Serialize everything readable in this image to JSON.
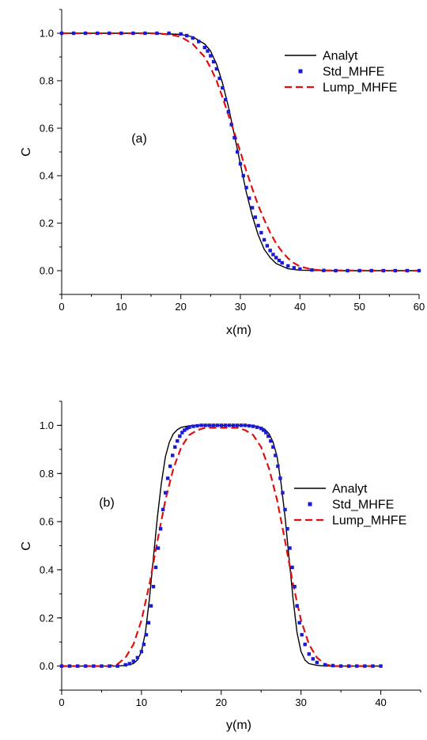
{
  "chart_data": [
    {
      "type": "line",
      "panel_label": "(a)",
      "xlabel": "x(m)",
      "ylabel": "C",
      "xlim": [
        0,
        60
      ],
      "ylim": [
        -0.1,
        1.1
      ],
      "xticks": [
        0,
        10,
        20,
        30,
        40,
        50,
        60
      ],
      "yticks": [
        0.0,
        0.2,
        0.4,
        0.6,
        0.8,
        1.0
      ],
      "xtick_labels": [
        "0",
        "10",
        "20",
        "30",
        "40",
        "50",
        "60"
      ],
      "ytick_labels": [
        "0.0",
        "0.2",
        "0.4",
        "0.6",
        "0.8",
        "1.0"
      ],
      "legend_position": "top-right",
      "series": [
        {
          "name": "Analyt",
          "style": "solid-line",
          "color": "#000000",
          "x": [
            0,
            15,
            20,
            22,
            24,
            25,
            26,
            27,
            28,
            29,
            30,
            31,
            32,
            33,
            34,
            35,
            36,
            38,
            40,
            45,
            60
          ],
          "y": [
            1.0,
            1.0,
            0.995,
            0.985,
            0.955,
            0.925,
            0.87,
            0.79,
            0.69,
            0.57,
            0.45,
            0.33,
            0.23,
            0.15,
            0.09,
            0.055,
            0.03,
            0.008,
            0.002,
            0.0,
            0.0
          ]
        },
        {
          "name": "Std_MHFE",
          "style": "square-markers",
          "color": "#1a1ad6",
          "x": [
            0,
            2,
            4,
            6,
            8,
            10,
            12,
            14,
            16,
            18,
            20,
            21,
            22,
            23,
            24,
            24.5,
            25,
            25.5,
            26,
            26.5,
            27,
            27.5,
            28,
            28.5,
            29,
            29.5,
            30,
            30.5,
            31,
            31.5,
            32,
            32.5,
            33,
            33.5,
            34,
            34.5,
            35,
            35.5,
            36,
            36.5,
            37,
            38,
            39,
            40,
            42,
            44,
            46,
            48,
            50,
            52,
            54,
            56,
            58,
            60
          ],
          "y": [
            1.0,
            1.0,
            1.0,
            1.0,
            1.0,
            1.0,
            1.0,
            1.0,
            1.0,
            1.0,
            0.997,
            0.99,
            0.98,
            0.965,
            0.94,
            0.925,
            0.905,
            0.88,
            0.85,
            0.81,
            0.77,
            0.72,
            0.67,
            0.615,
            0.56,
            0.5,
            0.45,
            0.4,
            0.35,
            0.305,
            0.265,
            0.225,
            0.19,
            0.16,
            0.13,
            0.105,
            0.085,
            0.068,
            0.055,
            0.043,
            0.033,
            0.02,
            0.012,
            0.007,
            0.003,
            0.001,
            0.0,
            0.0,
            0.0,
            0.0,
            0.0,
            0.0,
            0.0,
            0.0
          ]
        },
        {
          "name": "Lump_MHFE",
          "style": "dashed-line",
          "color": "#e01010",
          "x": [
            0,
            15,
            18,
            20,
            22,
            24,
            25,
            26,
            27,
            28,
            29,
            30,
            31,
            32,
            33,
            34,
            35,
            36,
            37,
            38,
            39,
            40,
            42,
            44,
            60
          ],
          "y": [
            1.0,
            1.0,
            0.995,
            0.985,
            0.955,
            0.9,
            0.855,
            0.8,
            0.73,
            0.655,
            0.58,
            0.5,
            0.42,
            0.345,
            0.275,
            0.215,
            0.16,
            0.115,
            0.08,
            0.052,
            0.032,
            0.018,
            0.005,
            0.001,
            0.0
          ]
        }
      ]
    },
    {
      "type": "line",
      "panel_label": "(b)",
      "xlabel": "y(m)",
      "ylabel": "C",
      "xlim": [
        0,
        45
      ],
      "ylim": [
        -0.1,
        1.1
      ],
      "xticks": [
        0,
        10,
        20,
        30,
        40
      ],
      "yticks": [
        0.0,
        0.2,
        0.4,
        0.6,
        0.8,
        1.0
      ],
      "xtick_labels": [
        "0",
        "10",
        "20",
        "30",
        "40"
      ],
      "ytick_labels": [
        "0.0",
        "0.2",
        "0.4",
        "0.6",
        "0.8",
        "1.0"
      ],
      "legend_position": "right",
      "series": [
        {
          "name": "Analyt",
          "style": "solid-line",
          "color": "#000000",
          "x": [
            0,
            7,
            8,
            9,
            9.5,
            10,
            10.5,
            11,
            11.5,
            12,
            12.5,
            13,
            13.5,
            14,
            14.5,
            15,
            16,
            17,
            23,
            24,
            25,
            25.5,
            26,
            26.5,
            27,
            27.5,
            28,
            28.5,
            29,
            29.5,
            30,
            30.5,
            31,
            32,
            33,
            40
          ],
          "y": [
            0.0,
            0.0,
            0.003,
            0.01,
            0.025,
            0.06,
            0.14,
            0.28,
            0.45,
            0.62,
            0.76,
            0.87,
            0.93,
            0.965,
            0.982,
            0.992,
            0.998,
            1.0,
            1.0,
            0.998,
            0.992,
            0.982,
            0.965,
            0.93,
            0.87,
            0.76,
            0.62,
            0.45,
            0.28,
            0.14,
            0.06,
            0.025,
            0.01,
            0.003,
            0.0,
            0.0
          ]
        },
        {
          "name": "Std_MHFE",
          "style": "square-markers",
          "color": "#1a1ad6",
          "x": [
            0,
            1,
            2,
            3,
            4,
            5,
            6,
            7,
            8,
            8.5,
            9,
            9.5,
            10,
            10.3,
            10.6,
            10.9,
            11.2,
            11.5,
            11.8,
            12.1,
            12.4,
            12.7,
            13,
            13.3,
            13.6,
            13.9,
            14.2,
            14.5,
            14.8,
            15.1,
            15.4,
            15.7,
            16,
            16.5,
            17,
            17.5,
            18,
            18.5,
            19,
            19.5,
            20,
            20.5,
            21,
            21.5,
            22,
            22.5,
            23,
            23.5,
            24,
            24.5,
            25,
            25.3,
            25.6,
            25.9,
            26.2,
            26.5,
            26.8,
            27.1,
            27.4,
            27.7,
            28,
            28.3,
            28.6,
            28.9,
            29.2,
            29.5,
            29.8,
            30.1,
            30.5,
            31,
            31.5,
            32,
            33,
            34,
            35,
            36,
            37,
            38,
            39,
            40
          ],
          "y": [
            0.0,
            0.0,
            0.0,
            0.0,
            0.0,
            0.0,
            0.0,
            0.0,
            0.005,
            0.01,
            0.02,
            0.035,
            0.06,
            0.09,
            0.13,
            0.18,
            0.25,
            0.33,
            0.41,
            0.49,
            0.57,
            0.65,
            0.72,
            0.78,
            0.83,
            0.875,
            0.91,
            0.935,
            0.955,
            0.97,
            0.98,
            0.987,
            0.992,
            0.996,
            0.998,
            1.0,
            1.0,
            1.0,
            1.0,
            1.0,
            1.0,
            1.0,
            1.0,
            1.0,
            1.0,
            1.0,
            1.0,
            0.998,
            0.996,
            0.992,
            0.987,
            0.98,
            0.97,
            0.955,
            0.935,
            0.91,
            0.875,
            0.83,
            0.78,
            0.72,
            0.65,
            0.57,
            0.49,
            0.41,
            0.33,
            0.25,
            0.18,
            0.13,
            0.09,
            0.05,
            0.03,
            0.015,
            0.005,
            0.002,
            0.0,
            0.0,
            0.0,
            0.0,
            0.0,
            0.0
          ]
        },
        {
          "name": "Lump_MHFE",
          "style": "dashed-line",
          "color": "#e01010",
          "x": [
            0,
            6,
            7,
            8,
            9,
            10,
            11,
            12,
            13,
            14,
            15,
            16,
            17,
            18,
            22,
            23,
            24,
            25,
            26,
            27,
            28,
            29,
            30,
            31,
            32,
            33,
            34,
            40
          ],
          "y": [
            0.0,
            0.0,
            0.008,
            0.035,
            0.09,
            0.19,
            0.34,
            0.52,
            0.69,
            0.82,
            0.91,
            0.96,
            0.98,
            0.99,
            0.99,
            0.98,
            0.96,
            0.91,
            0.82,
            0.69,
            0.52,
            0.34,
            0.19,
            0.09,
            0.035,
            0.008,
            0.0,
            0.0
          ]
        }
      ]
    }
  ]
}
